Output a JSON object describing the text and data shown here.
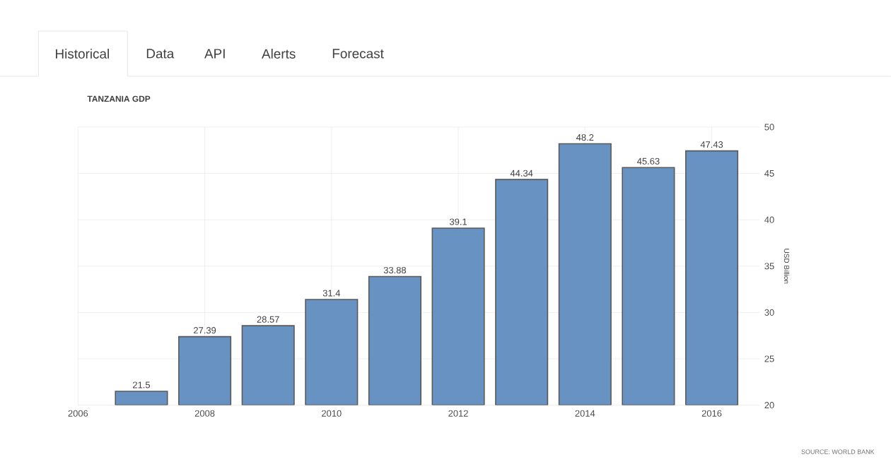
{
  "chart_data": {
    "type": "bar",
    "title": "TANZANIA GDP",
    "ylabel": "USD Billion",
    "x": [
      2007,
      2008,
      2009,
      2010,
      2011,
      2012,
      2013,
      2014,
      2015,
      2016
    ],
    "values": [
      21.5,
      27.39,
      28.57,
      31.4,
      33.88,
      39.1,
      44.34,
      48.2,
      45.63,
      47.43
    ],
    "color": "#6892c2",
    "xlim": [
      2006,
      2016.75
    ],
    "xticks": [
      2006,
      2008,
      2010,
      2012,
      2014,
      2016
    ],
    "ylim": [
      20,
      50
    ],
    "yticks": [
      20,
      25,
      30,
      35,
      40,
      45,
      50
    ],
    "grid": true,
    "data_labels": true,
    "annotations": [
      "Historical",
      "Data",
      "API",
      "Alerts",
      "Forecast",
      "SOURCE: WORLD BANK"
    ]
  }
}
